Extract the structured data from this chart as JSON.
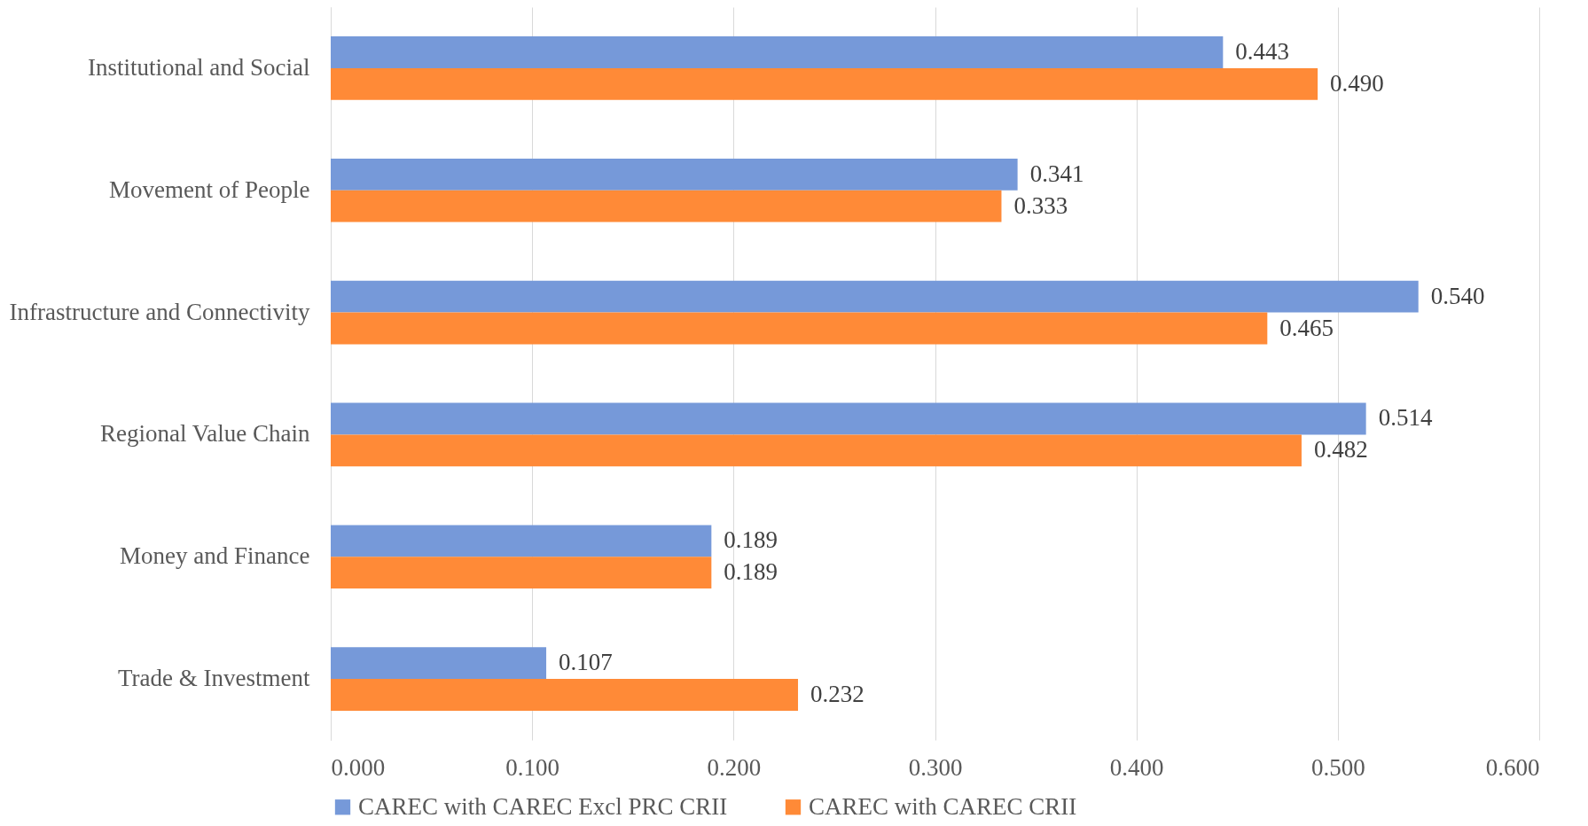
{
  "chart_data": {
    "type": "bar",
    "orientation": "horizontal",
    "categories": [
      "Institutional and Social",
      "Movement of People",
      "Infrastructure and Connectivity",
      "Regional Value Chain",
      "Money and Finance",
      "Trade & Investment"
    ],
    "series": [
      {
        "name": "CAREC with CAREC Excl PRC CRII",
        "color": "#7699d9",
        "values": [
          0.443,
          0.341,
          0.54,
          0.514,
          0.189,
          0.107
        ],
        "value_labels": [
          "0.443",
          "0.341",
          "0.540",
          "0.514",
          "0.189",
          "0.107"
        ]
      },
      {
        "name": "CAREC with CAREC CRII",
        "color": "#ff8a37",
        "values": [
          0.49,
          0.333,
          0.465,
          0.482,
          0.189,
          0.232
        ],
        "value_labels": [
          "0.490",
          "0.333",
          "0.465",
          "0.482",
          "0.189",
          "0.232"
        ]
      }
    ],
    "xlim": [
      0,
      0.6
    ],
    "xticks": [
      {
        "value": 0,
        "label": "0.000"
      },
      {
        "value": 0.1,
        "label": "0.100"
      },
      {
        "value": 0.2,
        "label": "0.200"
      },
      {
        "value": 0.3,
        "label": "0.300"
      },
      {
        "value": 0.4,
        "label": "0.400"
      },
      {
        "value": 0.5,
        "label": "0.500"
      },
      {
        "value": 0.6,
        "label": "0.600"
      }
    ],
    "grid": "x",
    "legend": "bottom"
  }
}
